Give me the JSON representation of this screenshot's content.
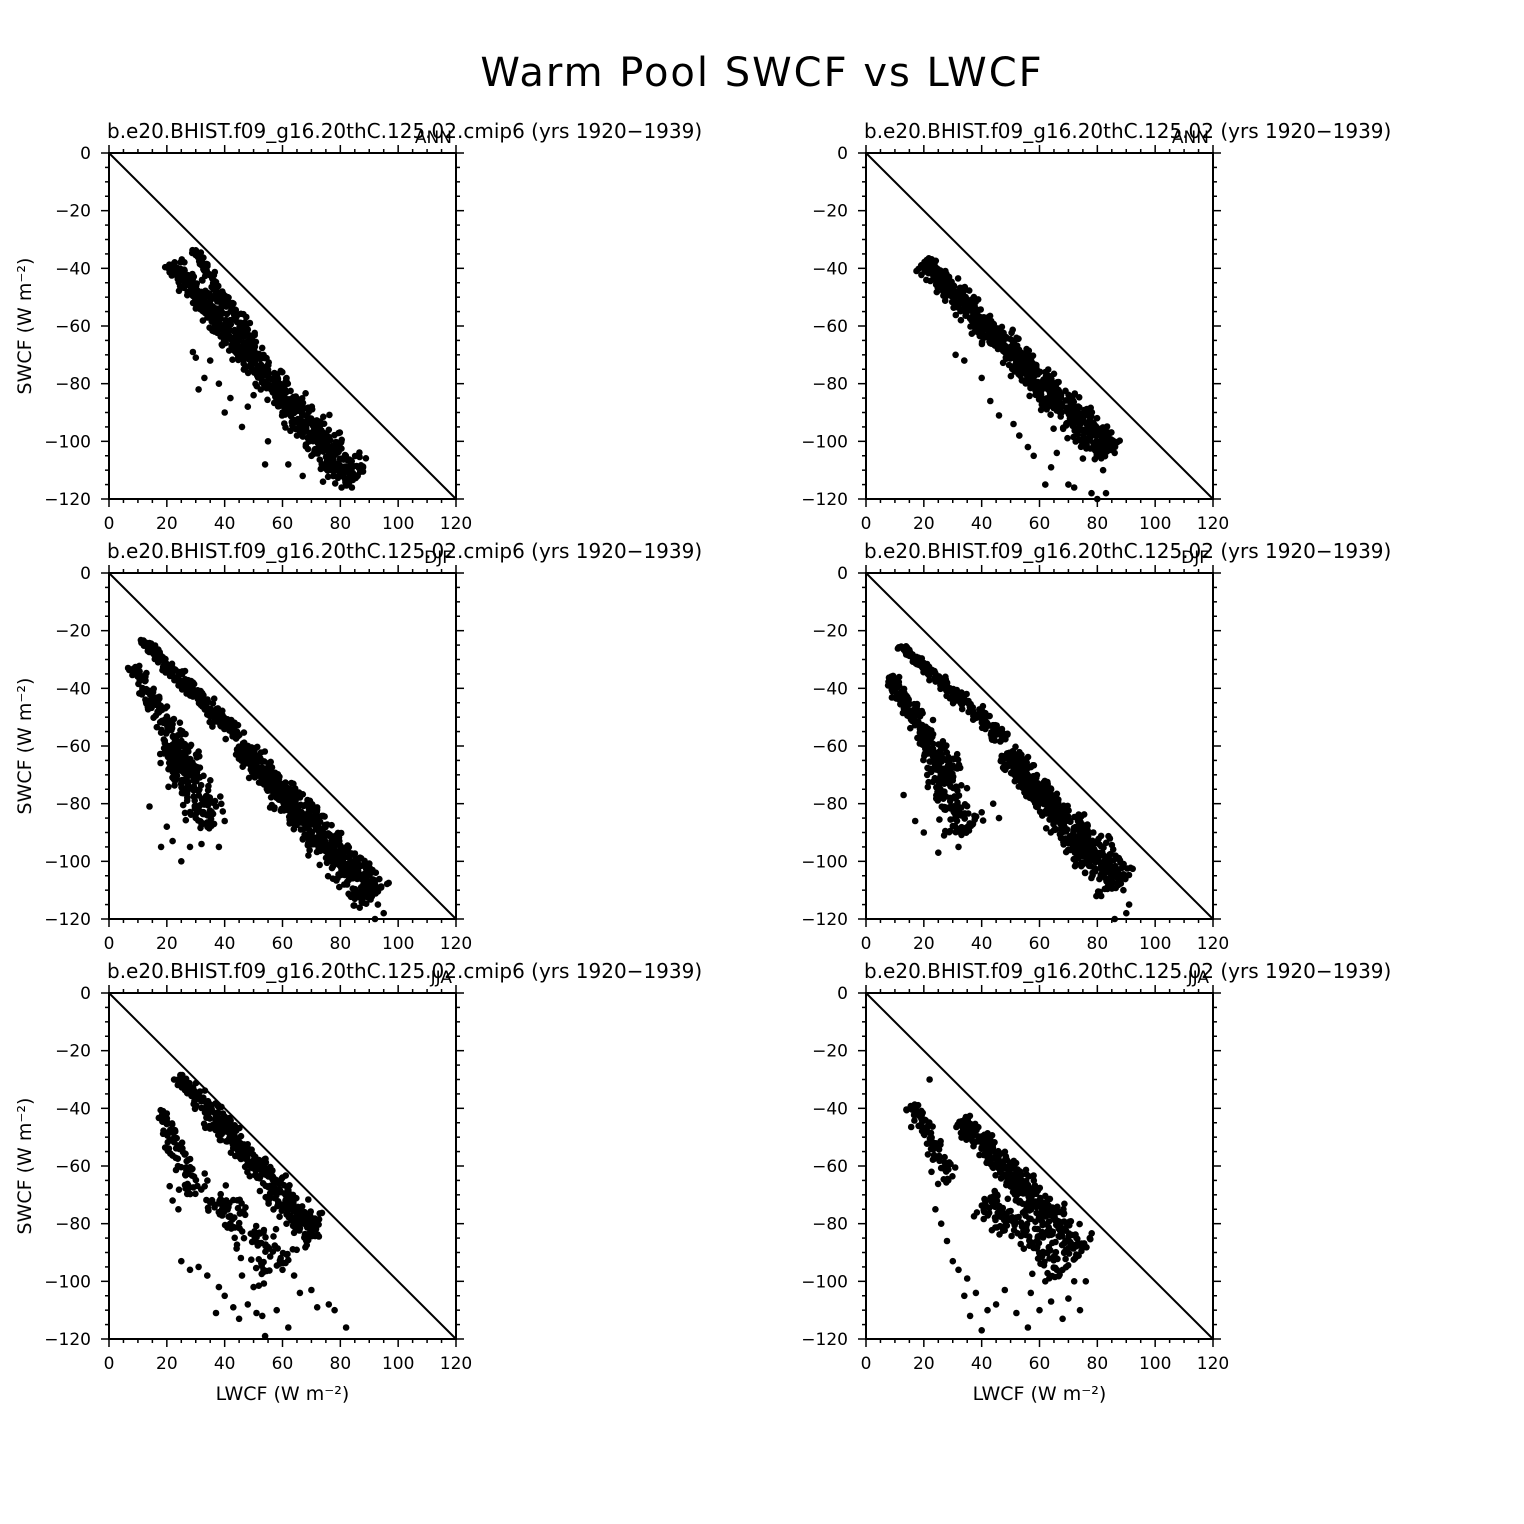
{
  "figure": {
    "title": "Warm Pool SWCF vs LWCF"
  },
  "chart_data": [
    {
      "type": "scatter",
      "title": "b.e20.BHIST.f09_g16.20thC.125.02.cmip6 (yrs 1920−1939)",
      "season": "ANN",
      "xlabel": "",
      "ylabel": "SWCF (W m⁻²)",
      "xlim": [
        0,
        120
      ],
      "ylim": [
        -120,
        0
      ],
      "xticks": [
        "0",
        "20",
        "40",
        "60",
        "80",
        "100",
        "120"
      ],
      "yticks": [
        "0",
        "−20",
        "−40",
        "−60",
        "−80",
        "−100",
        "−120"
      ],
      "reference_line": "x = -y",
      "clusters": [
        {
          "from": [
            21,
            -38
          ],
          "to": [
            85,
            -113
          ],
          "width": 8,
          "count": 720
        },
        {
          "from": [
            29,
            -33
          ],
          "to": [
            50,
            -65
          ],
          "width": 3,
          "count": 120
        }
      ],
      "points": [
        [
          30,
          -71
        ],
        [
          35,
          -72
        ],
        [
          29,
          -69
        ],
        [
          33,
          -78
        ],
        [
          38,
          -80
        ],
        [
          31,
          -82
        ],
        [
          40,
          -90
        ],
        [
          42,
          -85
        ],
        [
          46,
          -95
        ],
        [
          55,
          -100
        ],
        [
          54,
          -108
        ],
        [
          62,
          -108
        ],
        [
          67,
          -112
        ],
        [
          74,
          -114
        ],
        [
          82,
          -115
        ],
        [
          80,
          -112
        ],
        [
          70,
          -105
        ],
        [
          77,
          -110
        ],
        [
          85,
          -112
        ],
        [
          84,
          -116
        ],
        [
          86,
          -112
        ],
        [
          76,
          -96
        ],
        [
          72,
          -100
        ],
        [
          65,
          -98
        ],
        [
          60,
          -90
        ],
        [
          50,
          -84
        ],
        [
          48,
          -88
        ]
      ]
    },
    {
      "type": "scatter",
      "title": "b.e20.BHIST.f09_g16.20thC.125.02 (yrs 1920−1939)",
      "season": "ANN",
      "xlabel": "",
      "ylabel": "",
      "xlim": [
        0,
        120
      ],
      "ylim": [
        -120,
        0
      ],
      "xticks": [
        "0",
        "20",
        "40",
        "60",
        "80",
        "100",
        "120"
      ],
      "yticks": [
        "0",
        "−20",
        "−40",
        "−60",
        "−80",
        "−100",
        "−120"
      ],
      "reference_line": "x = -y",
      "clusters": [
        {
          "from": [
            20,
            -38
          ],
          "to": [
            84,
            -104
          ],
          "width": 8,
          "count": 780
        }
      ],
      "points": [
        [
          31,
          -70
        ],
        [
          34,
          -72
        ],
        [
          40,
          -78
        ],
        [
          43,
          -86
        ],
        [
          46,
          -91
        ],
        [
          51,
          -94
        ],
        [
          53,
          -98
        ],
        [
          56,
          -102
        ],
        [
          62,
          -115
        ],
        [
          66,
          -104
        ],
        [
          70,
          -115
        ],
        [
          72,
          -116
        ],
        [
          78,
          -118
        ],
        [
          80,
          -120
        ],
        [
          83,
          -118
        ],
        [
          82,
          -110
        ],
        [
          64,
          -109
        ],
        [
          58,
          -105
        ],
        [
          75,
          -106
        ],
        [
          86,
          -104
        ],
        [
          84,
          -97
        ]
      ]
    },
    {
      "type": "scatter",
      "title": "b.e20.BHIST.f09_g16.20thC.125.02.cmip6 (yrs 1920−1939)",
      "season": "DJF",
      "xlabel": "",
      "ylabel": "SWCF (W m⁻²)",
      "xlim": [
        0,
        120
      ],
      "ylim": [
        -120,
        0
      ],
      "xticks": [
        "0",
        "20",
        "40",
        "60",
        "80",
        "100",
        "120"
      ],
      "yticks": [
        "0",
        "−20",
        "−40",
        "−60",
        "−80",
        "−100",
        "−120"
      ],
      "reference_line": "x = -y",
      "clusters": [
        {
          "from": [
            11,
            -23
          ],
          "to": [
            45,
            -57
          ],
          "width": 4,
          "count": 220
        },
        {
          "from": [
            8,
            -32
          ],
          "to": [
            30,
            -70
          ],
          "width": 6,
          "count": 180
        },
        {
          "from": [
            45,
            -60
          ],
          "to": [
            92,
            -112
          ],
          "width": 9,
          "count": 600
        },
        {
          "from": [
            20,
            -60
          ],
          "to": [
            36,
            -88
          ],
          "width": 10,
          "count": 160
        }
      ],
      "points": [
        [
          14,
          -81
        ],
        [
          18,
          -95
        ],
        [
          22,
          -93
        ],
        [
          25,
          -100
        ],
        [
          28,
          -95
        ],
        [
          32,
          -94
        ],
        [
          38,
          -95
        ],
        [
          40,
          -86
        ],
        [
          37,
          -81
        ],
        [
          30,
          -85
        ],
        [
          20,
          -88
        ],
        [
          93,
          -115
        ],
        [
          95,
          -118
        ],
        [
          92,
          -120
        ],
        [
          85,
          -113
        ],
        [
          88,
          -108
        ]
      ]
    },
    {
      "type": "scatter",
      "title": "b.e20.BHIST.f09_g16.20thC.125.02 (yrs 1920−1939)",
      "season": "DJF",
      "xlabel": "",
      "ylabel": "",
      "xlim": [
        0,
        120
      ],
      "ylim": [
        -120,
        0
      ],
      "xticks": [
        "0",
        "20",
        "40",
        "60",
        "80",
        "100",
        "120"
      ],
      "yticks": [
        "0",
        "−20",
        "−40",
        "−60",
        "−80",
        "−100",
        "−120"
      ],
      "reference_line": "x = -y",
      "clusters": [
        {
          "from": [
            12,
            -25
          ],
          "to": [
            48,
            -58
          ],
          "width": 4,
          "count": 220
        },
        {
          "from": [
            8,
            -36
          ],
          "to": [
            30,
            -70
          ],
          "width": 6,
          "count": 180
        },
        {
          "from": [
            48,
            -62
          ],
          "to": [
            88,
            -108
          ],
          "width": 9,
          "count": 560
        },
        {
          "from": [
            22,
            -60
          ],
          "to": [
            35,
            -90
          ],
          "width": 9,
          "count": 150
        }
      ],
      "points": [
        [
          13,
          -77
        ],
        [
          17,
          -86
        ],
        [
          20,
          -90
        ],
        [
          25,
          -97
        ],
        [
          27,
          -91
        ],
        [
          32,
          -95
        ],
        [
          33,
          -89
        ],
        [
          37,
          -87
        ],
        [
          40,
          -83
        ],
        [
          44,
          -80
        ],
        [
          46,
          -85
        ],
        [
          90,
          -118
        ],
        [
          91,
          -115
        ],
        [
          86,
          -120
        ],
        [
          89,
          -110
        ]
      ]
    },
    {
      "type": "scatter",
      "title": "b.e20.BHIST.f09_g16.20thC.125.02.cmip6 (yrs 1920−1939)",
      "season": "JJA",
      "xlabel": "LWCF (W m⁻²)",
      "ylabel": "SWCF (W m⁻²)",
      "xlim": [
        0,
        120
      ],
      "ylim": [
        -120,
        0
      ],
      "xticks": [
        "0",
        "20",
        "40",
        "60",
        "80",
        "100",
        "120"
      ],
      "yticks": [
        "0",
        "−20",
        "−40",
        "−60",
        "−80",
        "−100",
        "−120"
      ],
      "reference_line": "x = -y",
      "clusters": [
        {
          "from": [
            24,
            -28
          ],
          "to": [
            72,
            -85
          ],
          "width": 7,
          "count": 420
        },
        {
          "from": [
            18,
            -40
          ],
          "to": [
            30,
            -70
          ],
          "width": 6,
          "count": 80
        },
        {
          "from": [
            35,
            -70
          ],
          "to": [
            60,
            -95
          ],
          "width": 12,
          "count": 110
        }
      ],
      "points": [
        [
          21,
          -67
        ],
        [
          22,
          -72
        ],
        [
          24,
          -75
        ],
        [
          25,
          -93
        ],
        [
          28,
          -96
        ],
        [
          31,
          -95
        ],
        [
          34,
          -98
        ],
        [
          38,
          -102
        ],
        [
          37,
          -111
        ],
        [
          40,
          -105
        ],
        [
          43,
          -109
        ],
        [
          45,
          -113
        ],
        [
          48,
          -108
        ],
        [
          51,
          -111
        ],
        [
          53,
          -112
        ],
        [
          54,
          -119
        ],
        [
          58,
          -110
        ],
        [
          62,
          -116
        ],
        [
          66,
          -104
        ],
        [
          70,
          -103
        ],
        [
          72,
          -109
        ],
        [
          76,
          -108
        ],
        [
          78,
          -110
        ],
        [
          82,
          -116
        ],
        [
          60,
          -96
        ],
        [
          64,
          -98
        ],
        [
          50,
          -102
        ],
        [
          46,
          -98
        ]
      ]
    },
    {
      "type": "scatter",
      "title": "b.e20.BHIST.f09_g16.20thC.125.02 (yrs 1920−1939)",
      "season": "JJA",
      "xlabel": "LWCF (W m⁻²)",
      "ylabel": "",
      "xlim": [
        0,
        120
      ],
      "ylim": [
        -120,
        0
      ],
      "xticks": [
        "0",
        "20",
        "40",
        "60",
        "80",
        "100",
        "120"
      ],
      "yticks": [
        "0",
        "−20",
        "−40",
        "−60",
        "−80",
        "−100",
        "−120"
      ],
      "reference_line": "x = -y",
      "clusters": [
        {
          "from": [
            33,
            -44
          ],
          "to": [
            75,
            -90
          ],
          "width": 8,
          "count": 380
        },
        {
          "from": [
            16,
            -38
          ],
          "to": [
            28,
            -66
          ],
          "width": 6,
          "count": 90
        },
        {
          "from": [
            40,
            -72
          ],
          "to": [
            70,
            -95
          ],
          "width": 12,
          "count": 140
        }
      ],
      "points": [
        [
          22,
          -30
        ],
        [
          20,
          -48
        ],
        [
          24,
          -75
        ],
        [
          26,
          -80
        ],
        [
          28,
          -86
        ],
        [
          30,
          -93
        ],
        [
          32,
          -96
        ],
        [
          35,
          -99
        ],
        [
          34,
          -105
        ],
        [
          38,
          -104
        ],
        [
          36,
          -112
        ],
        [
          40,
          -117
        ],
        [
          42,
          -110
        ],
        [
          45,
          -108
        ],
        [
          48,
          -103
        ],
        [
          52,
          -111
        ],
        [
          56,
          -116
        ],
        [
          57,
          -104
        ],
        [
          60,
          -110
        ],
        [
          64,
          -107
        ],
        [
          68,
          -113
        ],
        [
          70,
          -106
        ],
        [
          74,
          -110
        ],
        [
          76,
          -100
        ],
        [
          62,
          -100
        ],
        [
          66,
          -96
        ],
        [
          72,
          -100
        ]
      ]
    }
  ]
}
